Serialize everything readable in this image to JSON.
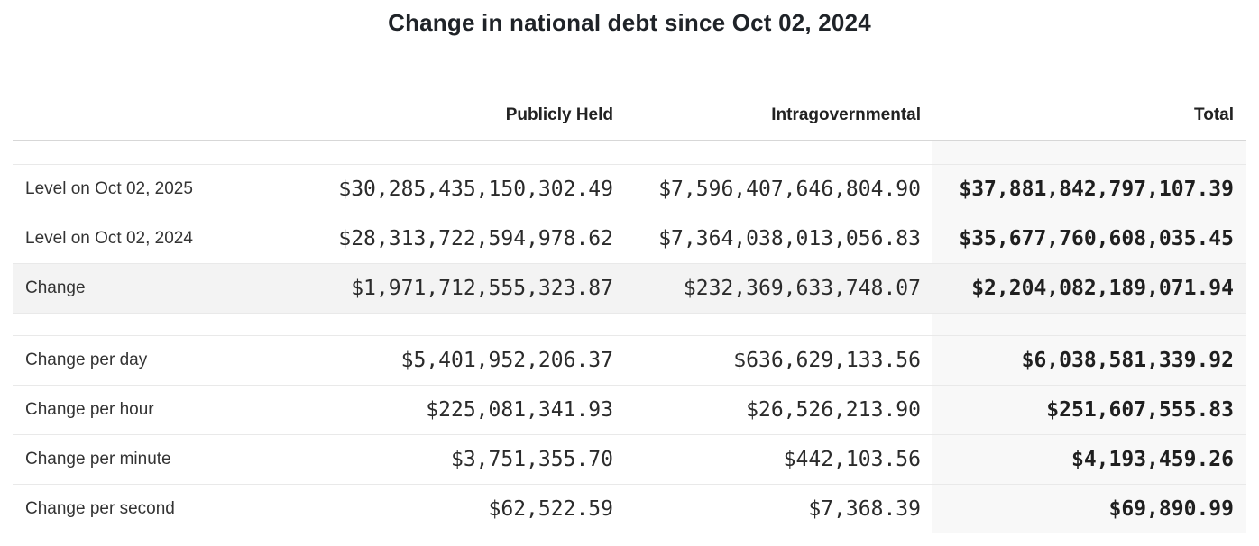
{
  "title": {
    "regular": "Change in national debt",
    "bold": "since Oct 02, 2024"
  },
  "colors": {
    "total_column_bg": "#f8f8f8",
    "highlight_row_bg": "#f3f3f3",
    "rule_heavy": "#d7d7d7",
    "rule_light": "#e9e9e9",
    "text": "#2d2d2d"
  },
  "chart_data": {
    "type": "table",
    "title": "Change in national debt since Oct 02, 2024",
    "title_regular": "Change in national debt",
    "title_bold": "since Oct 02, 2024",
    "columns": [
      "Publicly Held",
      "Intragovernmental",
      "Total"
    ],
    "header": {
      "publicly_held": "Publicly Held",
      "intragovernmental": "Intragovernmental",
      "total": "Total"
    },
    "rows": [
      {
        "label": "Level on Oct 02, 2025",
        "publicly_held": "$30,285,435,150,302.49",
        "intragovernmental": "$7,596,407,646,804.90",
        "total": "$37,881,842,797,107.39"
      },
      {
        "label": "Level on Oct 02, 2024",
        "publicly_held": "$28,313,722,594,978.62",
        "intragovernmental": "$7,364,038,013,056.83",
        "total": "$35,677,760,608,035.45"
      },
      {
        "label": "Change",
        "publicly_held": "$1,971,712,555,323.87",
        "intragovernmental": "$232,369,633,748.07",
        "total": "$2,204,082,189,071.94",
        "highlight": true
      },
      {
        "label": "Change per day",
        "publicly_held": "$5,401,952,206.37",
        "intragovernmental": "$636,629,133.56",
        "total": "$6,038,581,339.92"
      },
      {
        "label": "Change per hour",
        "publicly_held": "$225,081,341.93",
        "intragovernmental": "$26,526,213.90",
        "total": "$251,607,555.83"
      },
      {
        "label": "Change per minute",
        "publicly_held": "$3,751,355.70",
        "intragovernmental": "$442,103.56",
        "total": "$4,193,459.26"
      },
      {
        "label": "Change per second",
        "publicly_held": "$62,522.59",
        "intragovernmental": "$7,368.39",
        "total": "$69,890.99"
      }
    ]
  }
}
